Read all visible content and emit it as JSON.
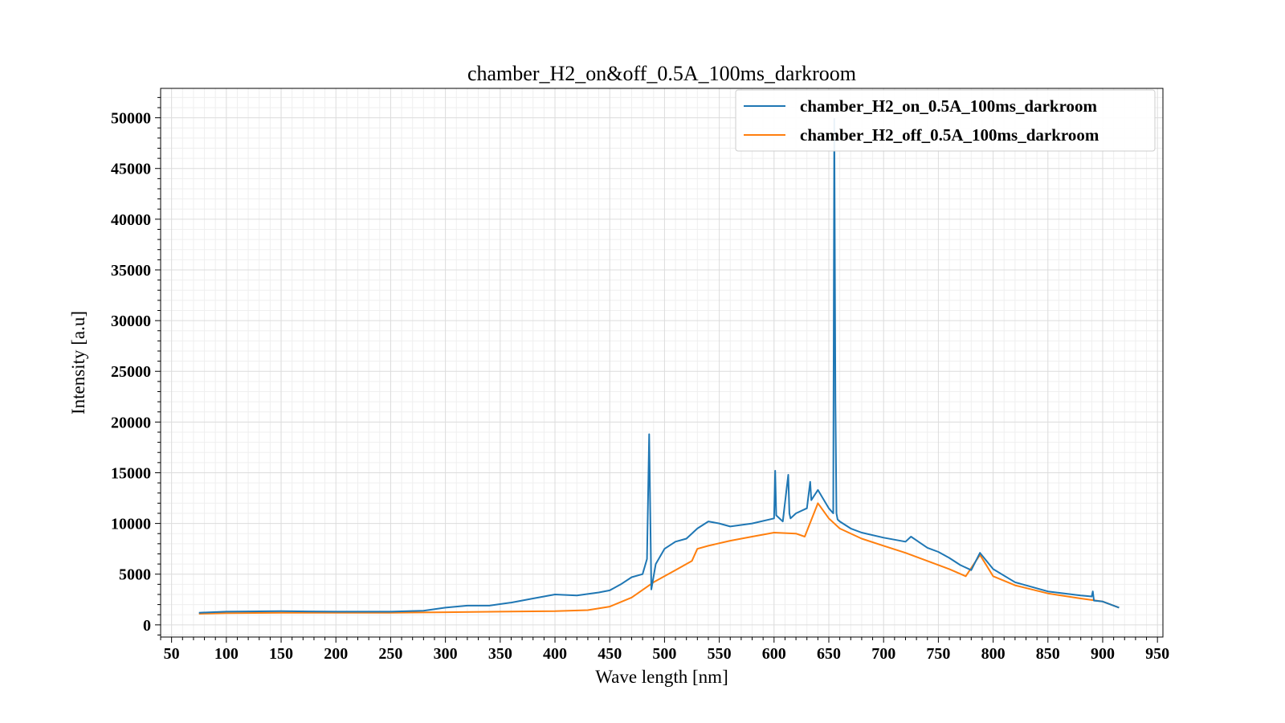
{
  "chart_data": {
    "type": "line",
    "title": "chamber_H2_on&off_0.5A_100ms_darkroom",
    "xlabel": "Wave length [nm]",
    "ylabel": "Intensity [a.u]",
    "xlim": [
      40,
      955
    ],
    "ylim": [
      -1200,
      52900
    ],
    "xticks": [
      50,
      100,
      150,
      200,
      250,
      300,
      350,
      400,
      450,
      500,
      550,
      600,
      650,
      700,
      750,
      800,
      850,
      900,
      950
    ],
    "yticks": [
      0,
      5000,
      10000,
      15000,
      20000,
      25000,
      30000,
      35000,
      40000,
      45000,
      50000
    ],
    "grid": true,
    "legend_position": "top-right",
    "series": [
      {
        "name": "chamber_H2_on_0.5A_100ms_darkroom",
        "color": "#1f77b4",
        "x": [
          75,
          100,
          150,
          200,
          250,
          280,
          300,
          320,
          340,
          360,
          380,
          400,
          420,
          440,
          450,
          460,
          470,
          480,
          484,
          486,
          488,
          492,
          500,
          510,
          520,
          530,
          540,
          550,
          560,
          580,
          600,
          601,
          602,
          608,
          613,
          614,
          615,
          620,
          630,
          633,
          634,
          640,
          650,
          654,
          655,
          656,
          657,
          658,
          660,
          670,
          680,
          700,
          720,
          725,
          740,
          750,
          760,
          770,
          780,
          788,
          800,
          820,
          850,
          880,
          890,
          891,
          892,
          900,
          915
        ],
        "y": [
          1200,
          1300,
          1350,
          1300,
          1300,
          1400,
          1700,
          1900,
          1900,
          2200,
          2600,
          3000,
          2900,
          3200,
          3400,
          4000,
          4700,
          5000,
          6500,
          18800,
          3500,
          6000,
          7500,
          8200,
          8500,
          9500,
          10200,
          10000,
          9700,
          10000,
          10500,
          15200,
          10800,
          10200,
          14800,
          11000,
          10500,
          11000,
          11500,
          14100,
          12300,
          13300,
          11500,
          11000,
          49900,
          22000,
          11000,
          10400,
          10200,
          9500,
          9100,
          8600,
          8200,
          8700,
          7600,
          7200,
          6600,
          5900,
          5400,
          7100,
          5500,
          4200,
          3300,
          2900,
          2800,
          3300,
          2400,
          2300,
          1700
        ]
      },
      {
        "name": "chamber_H2_off_0.5A_100ms_darkroom",
        "color": "#ff7f0e",
        "x": [
          75,
          100,
          150,
          200,
          250,
          300,
          350,
          400,
          430,
          450,
          470,
          490,
          510,
          525,
          530,
          540,
          560,
          580,
          600,
          620,
          628,
          640,
          650,
          660,
          680,
          700,
          720,
          740,
          760,
          775,
          788,
          800,
          820,
          850,
          880,
          900,
          915
        ],
        "y": [
          1100,
          1150,
          1200,
          1200,
          1200,
          1250,
          1300,
          1350,
          1450,
          1800,
          2700,
          4200,
          5400,
          6300,
          7500,
          7800,
          8300,
          8700,
          9100,
          9000,
          8700,
          12000,
          10500,
          9500,
          8500,
          7800,
          7100,
          6300,
          5500,
          4800,
          6900,
          4800,
          3900,
          3100,
          2600,
          2300,
          1700
        ]
      }
    ]
  }
}
